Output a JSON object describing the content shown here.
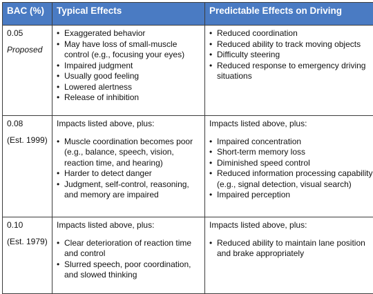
{
  "headers": [
    "BAC (%)",
    "Typical Effects",
    "Predictable Effects on Driving"
  ],
  "rows": [
    {
      "bac": "0.05",
      "note": "Proposed",
      "note_italic": true,
      "typical_intro": "",
      "typical": [
        "Exaggerated behavior",
        "May have loss of small-muscle control (e.g., focusing your eyes)",
        "Impaired judgment",
        "Usually good feeling",
        "Lowered alertness",
        "Release of inhibition"
      ],
      "driving_intro": "",
      "driving": [
        "Reduced coordination",
        "Reduced ability to track moving objects",
        "Difficulty steering",
        "Reduced response to emergency driving situations"
      ]
    },
    {
      "bac": "0.08",
      "note": "(Est. 1999)",
      "note_italic": false,
      "typical_intro": "Impacts listed above, plus:",
      "typical": [
        "Muscle coordination becomes poor (e.g., balance, speech, vision, reaction time, and hearing)",
        "Harder to detect danger",
        "Judgment, self-control, reasoning, and memory are impaired"
      ],
      "driving_intro": "Impacts listed above, plus:",
      "driving": [
        "Impaired concentration",
        "Short-term memory loss",
        "Diminished speed control",
        "Reduced information processing capability (e.g., signal detection, visual search)",
        "Impaired perception"
      ]
    },
    {
      "bac": "0.10",
      "note": "(Est. 1979)",
      "note_italic": false,
      "typical_intro": "Impacts listed above, plus:",
      "typical": [
        "Clear deterioration of reaction time and control",
        "Slurred speech, poor coordination, and slowed thinking"
      ],
      "driving_intro": "Impacts listed above, plus:",
      "driving": [
        "Reduced ability to maintain lane position and brake appropriately"
      ]
    }
  ]
}
